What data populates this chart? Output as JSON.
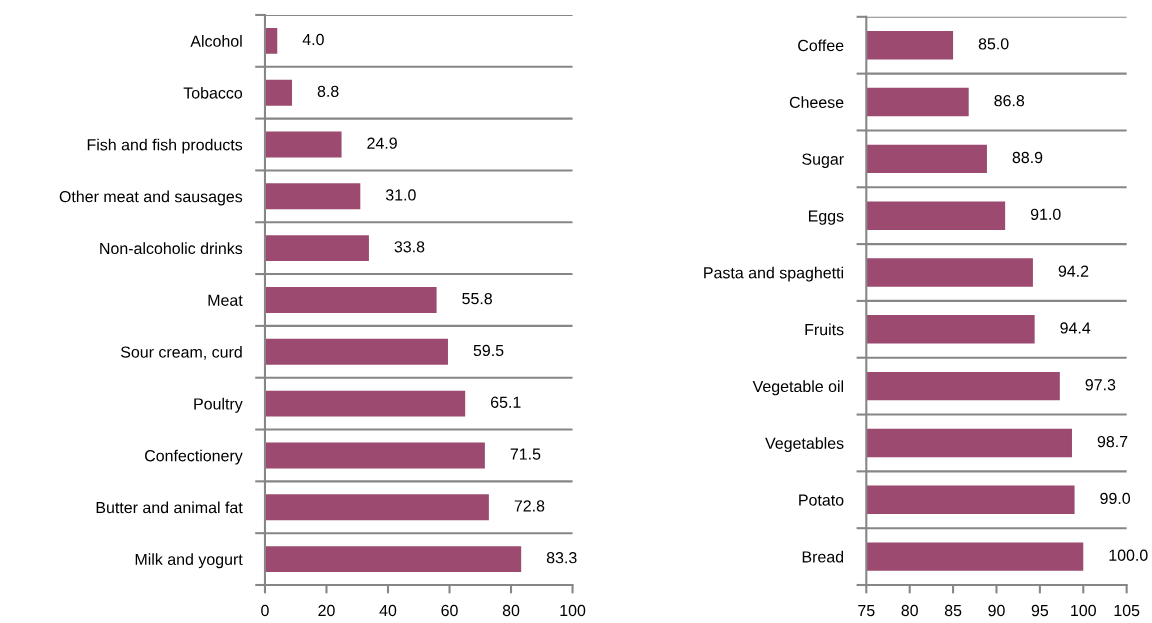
{
  "chart_data": [
    {
      "type": "bar",
      "orientation": "horizontal",
      "categories": [
        "Alcohol",
        "Tobacco",
        "Fish and fish products",
        "Other meat and sausages",
        "Non-alcoholic drinks",
        "Meat",
        "Sour cream, curd",
        "Poultry",
        "Confectionery",
        "Butter and animal fat",
        "Milk and yogurt"
      ],
      "values": [
        4.0,
        8.8,
        24.9,
        31.0,
        33.8,
        55.8,
        59.5,
        65.1,
        71.5,
        72.8,
        83.3
      ],
      "value_labels": [
        "4.0",
        "8.8",
        "24.9",
        "31.0",
        "33.8",
        "55.8",
        "59.5",
        "65.1",
        "71.5",
        "72.8",
        "83.3"
      ],
      "color": "#9c4a6f",
      "xlim": [
        0,
        100
      ],
      "xticks": [
        0,
        20,
        40,
        60,
        80,
        100
      ],
      "grid": "y"
    },
    {
      "type": "bar",
      "orientation": "horizontal",
      "categories": [
        "Coffee",
        "Cheese",
        "Sugar",
        "Eggs",
        "Pasta and spaghetti",
        "Fruits",
        "Vegetable oil",
        "Vegetables",
        "Potato",
        "Bread"
      ],
      "values": [
        85.0,
        86.8,
        88.9,
        91.0,
        94.2,
        94.4,
        97.3,
        98.7,
        99.0,
        100.0
      ],
      "value_labels": [
        "85.0",
        "86.8",
        "88.9",
        "91.0",
        "94.2",
        "94.4",
        "97.3",
        "98.7",
        "99.0",
        "100.0"
      ],
      "color": "#9c4a6f",
      "xlim": [
        75,
        105
      ],
      "xticks": [
        75,
        80,
        85,
        90,
        95,
        100,
        105
      ],
      "grid": "y"
    }
  ]
}
